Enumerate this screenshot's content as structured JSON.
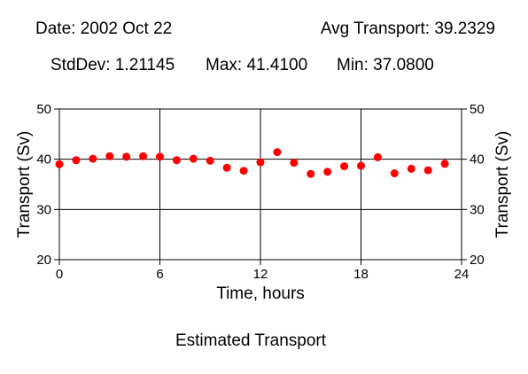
{
  "header": {
    "date": "Date: 2002 Oct 22",
    "avg": "Avg Transport: 39.2329",
    "stddev": "StdDev: 1.21145",
    "max": "Max: 41.4100",
    "min": "Min: 37.0800"
  },
  "caption": "Estimated Transport",
  "colors": {
    "point": "#ff0000",
    "axis": "#000000",
    "grid": "#000000"
  },
  "chart_data": {
    "type": "scatter",
    "title": "",
    "xlabel": "Time, hours",
    "ylabel": "Transport (Sv)",
    "ylabel_right": "Transport (Sv)",
    "xlim": [
      0,
      24
    ],
    "ylim": [
      20,
      50
    ],
    "xticks": [
      0,
      6,
      12,
      18,
      24
    ],
    "yticks": [
      20,
      30,
      40,
      50
    ],
    "grid": true,
    "series": [
      {
        "x": [
          0,
          1,
          2,
          3,
          4,
          5,
          6,
          7,
          8,
          9,
          10,
          11,
          12,
          13,
          14,
          15,
          16,
          17,
          18,
          19,
          20,
          21,
          22,
          23
        ],
        "y": [
          39.0,
          39.8,
          40.1,
          40.6,
          40.5,
          40.6,
          40.5,
          39.8,
          40.1,
          39.7,
          38.3,
          37.7,
          39.4,
          41.41,
          39.3,
          37.08,
          37.5,
          38.6,
          38.7,
          40.4,
          37.2,
          38.1,
          37.8,
          39.1
        ]
      }
    ]
  }
}
